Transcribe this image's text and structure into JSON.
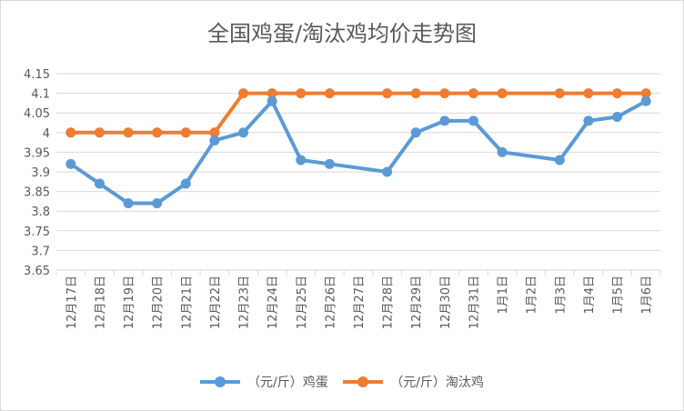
{
  "chart_data": {
    "type": "line",
    "title": "全国鸡蛋/淘汰鸡均价走势图",
    "xlabel": "",
    "ylabel": "",
    "categories": [
      "12月17日",
      "12月18日",
      "12月19日",
      "12月20日",
      "12月21日",
      "12月22日",
      "12月23日",
      "12月24日",
      "12月25日",
      "12月26日",
      "12月27日",
      "12月28日",
      "12月29日",
      "12月30日",
      "12月31日",
      "1月1日",
      "1月2日",
      "1月3日",
      "1月4日",
      "1月5日",
      "1月6日"
    ],
    "ylim": [
      3.65,
      4.15
    ],
    "yticks": [
      "4.15",
      "4.1",
      "4.05",
      "4",
      "3.95",
      "3.9",
      "3.85",
      "3.8",
      "3.75",
      "3.7",
      "3.65"
    ],
    "grid": true,
    "legend": "bottom",
    "series": [
      {
        "name": "（元/斤）鸡蛋",
        "color": "#5b9bd5",
        "values": [
          3.92,
          3.87,
          3.82,
          3.82,
          3.87,
          3.98,
          4.0,
          4.08,
          3.93,
          3.92,
          null,
          3.9,
          4.0,
          4.03,
          4.03,
          3.95,
          null,
          3.93,
          4.03,
          4.04,
          4.08
        ]
      },
      {
        "name": "（元/斤）淘汰鸡",
        "color": "#ed7d31",
        "values": [
          4.0,
          4.0,
          4.0,
          4.0,
          4.0,
          4.0,
          4.1,
          4.1,
          4.1,
          4.1,
          null,
          4.1,
          4.1,
          4.1,
          4.1,
          4.1,
          null,
          4.1,
          4.1,
          4.1,
          4.1
        ]
      }
    ]
  }
}
